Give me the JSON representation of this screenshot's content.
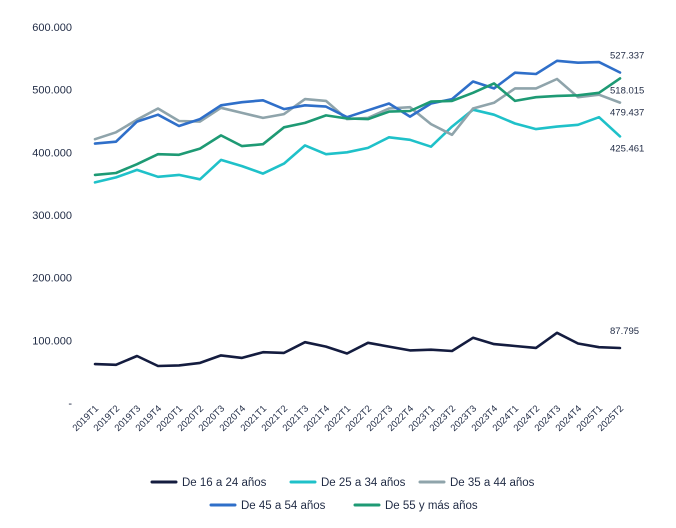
{
  "chart_data": {
    "type": "line",
    "title": "",
    "xlabel": "",
    "ylabel": "",
    "ylim": [
      0,
      600000
    ],
    "y_ticks": [
      {
        "value": 0,
        "label": "-"
      },
      {
        "value": 100000,
        "label": "100.000"
      },
      {
        "value": 200000,
        "label": "200.000"
      },
      {
        "value": 300000,
        "label": "300.000"
      },
      {
        "value": 400000,
        "label": "400.000"
      },
      {
        "value": 500000,
        "label": "500.000"
      },
      {
        "value": 600000,
        "label": "600.000"
      }
    ],
    "categories": [
      "2019T1",
      "2019T2",
      "2019T3",
      "2019T4",
      "2020T1",
      "2020T2",
      "2020T3",
      "2020T4",
      "2021T1",
      "2021T2",
      "2021T3",
      "2021T4",
      "2022T1",
      "2022T2",
      "2022T3",
      "2022T4",
      "2023T1",
      "2023T2",
      "2023T3",
      "2023T4",
      "2024T1",
      "2024T2",
      "2024T3",
      "2024T4",
      "2025T1",
      "2025T2"
    ],
    "legend_position": "bottom",
    "series": [
      {
        "name": "De 16 a 24 años",
        "color": "#141c3f",
        "values": [
          62000,
          61000,
          75000,
          59000,
          60000,
          64000,
          76000,
          72000,
          81000,
          80000,
          97000,
          90000,
          79000,
          96000,
          90000,
          84000,
          85000,
          83000,
          104000,
          94000,
          91000,
          88000,
          112000,
          95000,
          89000,
          87795
        ],
        "end_label": "87.795"
      },
      {
        "name": "De 25 a 34 años",
        "color": "#1fc1c9",
        "values": [
          352000,
          360000,
          372000,
          361000,
          364000,
          357000,
          388000,
          378000,
          366000,
          382000,
          411000,
          397000,
          400000,
          407000,
          424000,
          420000,
          409000,
          441000,
          468000,
          460000,
          446000,
          437000,
          441000,
          444000,
          456000,
          425461
        ],
        "end_label": "425.461"
      },
      {
        "name": "De 35 a 44 años",
        "color": "#8fa4ab",
        "values": [
          421000,
          432000,
          452000,
          470000,
          450000,
          449000,
          471000,
          463000,
          455000,
          461000,
          485000,
          482000,
          453000,
          455000,
          470000,
          472000,
          445000,
          428000,
          470000,
          479000,
          502000,
          502000,
          517000,
          488000,
          492000,
          479437
        ],
        "end_label": "479.437"
      },
      {
        "name": "De 45 a 54 años",
        "color": "#2f6fc9",
        "values": [
          414000,
          417000,
          449000,
          460000,
          442000,
          453000,
          475000,
          480000,
          483000,
          469000,
          475000,
          473000,
          456000,
          467000,
          478000,
          457000,
          478000,
          485000,
          513000,
          502000,
          527000,
          525000,
          546000,
          543000,
          544000,
          527337
        ],
        "end_label": "527.337"
      },
      {
        "name": "De 55 y más años",
        "color": "#1e9a74",
        "values": [
          364000,
          367000,
          381000,
          397000,
          396000,
          406000,
          427000,
          410000,
          413000,
          440000,
          447000,
          459000,
          454000,
          453000,
          465000,
          466000,
          481000,
          482000,
          495000,
          510000,
          482000,
          488000,
          490000,
          491000,
          495000,
          518015
        ],
        "end_label": "518.015"
      }
    ]
  }
}
